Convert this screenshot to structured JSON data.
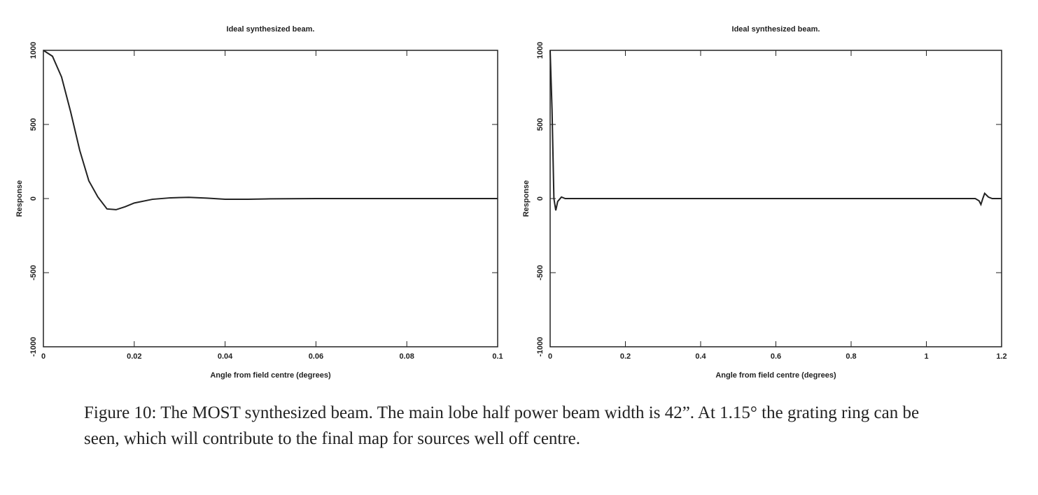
{
  "chart_data": [
    {
      "type": "line",
      "title": "Ideal synthesized beam.",
      "x_label": "Angle from field centre (degrees)",
      "y_label": "Response",
      "x": [
        0,
        0.002,
        0.004,
        0.006,
        0.008,
        0.01,
        0.012,
        0.014,
        0.016,
        0.018,
        0.02,
        0.024,
        0.028,
        0.032,
        0.036,
        0.04,
        0.045,
        0.05,
        0.06,
        0.08,
        0.1
      ],
      "values": [
        1000,
        960,
        820,
        585,
        325,
        120,
        10,
        -70,
        -75,
        -55,
        -30,
        -5,
        5,
        8,
        3,
        -5,
        -5,
        -2,
        0,
        0,
        0
      ],
      "color": "#222222",
      "xlim": [
        0,
        0.1
      ],
      "ylim": [
        -1000,
        1000
      ],
      "xticks": [
        0,
        0.02,
        0.04,
        0.06,
        0.08,
        0.1
      ],
      "yticks": [
        -1000,
        -500,
        0,
        500,
        1000
      ]
    },
    {
      "type": "line",
      "title": "Ideal synthesized beam.",
      "x_label": "Angle from field centre (degrees)",
      "y_label": "Response",
      "x": [
        0,
        0.005,
        0.01,
        0.015,
        0.02,
        0.03,
        0.04,
        0.1,
        1.1,
        1.13,
        1.14,
        1.145,
        1.15,
        1.155,
        1.165,
        1.175,
        1.2
      ],
      "values": [
        1000,
        600,
        0,
        -80,
        -20,
        10,
        0,
        0,
        0,
        0,
        -15,
        -40,
        0,
        35,
        10,
        0,
        0
      ],
      "color": "#222222",
      "xlim": [
        0,
        1.2
      ],
      "ylim": [
        -1000,
        1000
      ],
      "xticks": [
        0,
        0.2,
        0.4,
        0.6,
        0.8,
        1,
        1.2
      ],
      "yticks": [
        -1000,
        -500,
        0,
        500,
        1000
      ]
    }
  ],
  "caption": "Figure 10: The MOST synthesized beam. The main lobe half power beam width is 42”. At 1.15° the grating ring can be seen, which will contribute to the final map for sources well off centre."
}
